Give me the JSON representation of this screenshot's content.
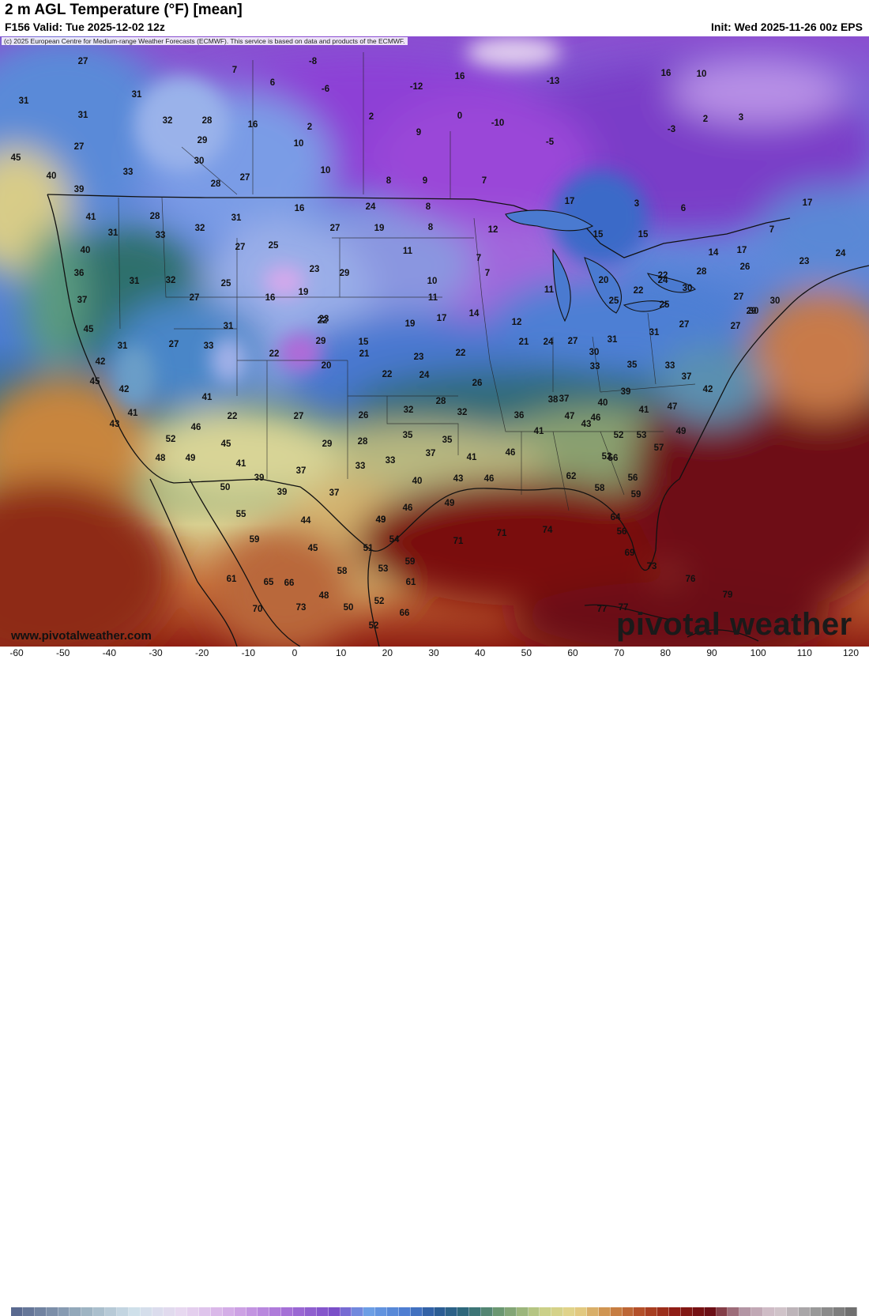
{
  "header": {
    "title": "2 m AGL Temperature (°F) [mean]",
    "valid": "F156 Valid: Tue 2025-12-02 12z",
    "init": "Init: Wed 2025-11-26 00z EPS"
  },
  "credit": "(c) 2025 European Centre for Medium-range Weather Forecasts (ECMWF). This service is based on data and products of the ECMWF.",
  "footer": {
    "website": "www.pivotalweather.com",
    "brand": "pivotal weather"
  },
  "colorbar": {
    "ticks": [
      "-60",
      "-50",
      "-40",
      "-30",
      "-20",
      "-10",
      "0",
      "10",
      "20",
      "30",
      "40",
      "50",
      "60",
      "70",
      "80",
      "90",
      "100",
      "110",
      "120"
    ]
  },
  "map_values": {
    "west_canada": [
      "27",
      "31",
      "31",
      "27",
      "45",
      "40",
      "39",
      "33",
      "31",
      "32",
      "29",
      "28",
      "30",
      "28",
      "27",
      "16",
      "7",
      "2",
      "10",
      "10",
      "6",
      "-8",
      "-6",
      "-12",
      "16",
      "2",
      "9",
      "8",
      "9",
      "7",
      "0",
      "-10",
      "-5",
      "-13",
      "16",
      "10",
      "-3",
      "2",
      "3",
      "17",
      "6",
      "3",
      "7",
      "17"
    ],
    "northwest": [
      "41",
      "31",
      "40",
      "36",
      "37",
      "45",
      "31",
      "42",
      "45",
      "42",
      "41",
      "43",
      "28",
      "33",
      "31",
      "32",
      "32",
      "27",
      "31",
      "27",
      "25",
      "25",
      "16",
      "19",
      "23",
      "16",
      "27",
      "29",
      "24",
      "19",
      "11",
      "8",
      "8",
      "10",
      "11",
      "7",
      "7",
      "11",
      "14",
      "12",
      "12"
    ],
    "central": [
      "31",
      "33",
      "41",
      "27",
      "22",
      "22",
      "29",
      "23",
      "27",
      "20",
      "15",
      "22",
      "21",
      "19",
      "17",
      "22",
      "24",
      "23",
      "22",
      "26",
      "26",
      "28",
      "29",
      "28",
      "32",
      "32",
      "35",
      "33",
      "37",
      "35",
      "33",
      "37",
      "40",
      "43",
      "41",
      "46",
      "49",
      "46",
      "49"
    ],
    "east": [
      "15",
      "15",
      "14",
      "17",
      "23",
      "24",
      "22",
      "20",
      "22",
      "25",
      "24",
      "25",
      "26",
      "27",
      "30",
      "30",
      "28",
      "27",
      "29",
      "30",
      "27",
      "24",
      "21",
      "27",
      "30",
      "31",
      "33",
      "35",
      "31",
      "33",
      "37",
      "39",
      "36",
      "38",
      "42",
      "41",
      "40",
      "37",
      "43",
      "41",
      "46",
      "47",
      "46",
      "47",
      "52",
      "49",
      "53",
      "56",
      "52",
      "57",
      "56",
      "59",
      "62",
      "58"
    ],
    "south": [
      "52",
      "48",
      "49",
      "41",
      "46",
      "45",
      "50",
      "39",
      "37",
      "39",
      "44",
      "55",
      "59",
      "45",
      "51",
      "49",
      "54",
      "65",
      "58",
      "53",
      "61",
      "61",
      "66",
      "48",
      "73",
      "70",
      "50",
      "52",
      "66",
      "59",
      "71",
      "71",
      "74",
      "64",
      "56",
      "69",
      "73",
      "77",
      "76",
      "79",
      "77",
      "52"
    ]
  }
}
